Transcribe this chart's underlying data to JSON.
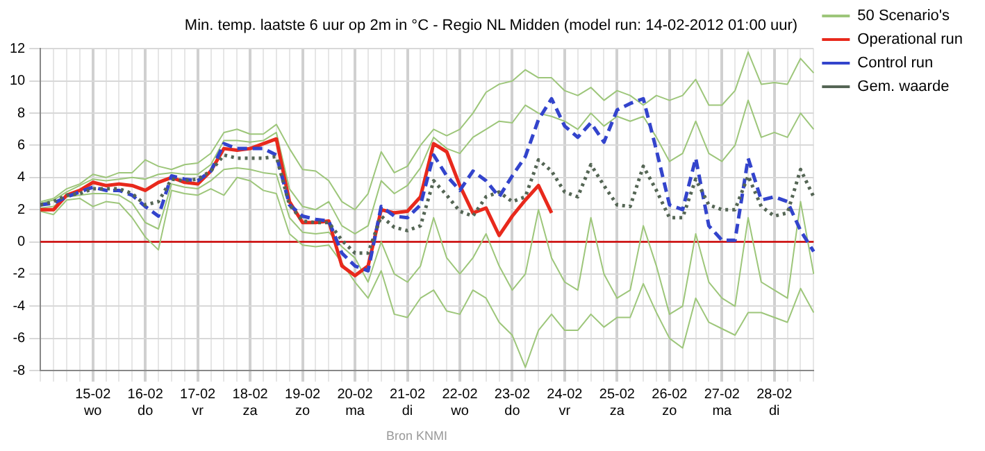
{
  "chart_data": {
    "type": "line",
    "title": "Min. temp. laatste 6 uur op 2m in °C - Regio NL Midden (model run: 14-02-2012 01:00 uur)",
    "categories": [
      null,
      null,
      null,
      null,
      "15-02\nwo",
      null,
      null,
      null,
      "16-02\ndo",
      null,
      null,
      null,
      "17-02\nvr",
      null,
      null,
      null,
      "18-02\nza",
      null,
      null,
      null,
      "19-02\nzo",
      null,
      null,
      null,
      "20-02\nma",
      null,
      null,
      null,
      "21-02\ndi",
      null,
      null,
      null,
      "22-02\nwo",
      null,
      null,
      null,
      "23-02\ndo",
      null,
      null,
      null,
      "24-02\nvr",
      null,
      null,
      null,
      "25-02\nza",
      null,
      null,
      null,
      "26-02\nzo",
      null,
      null,
      null,
      "27-02\nma",
      null,
      null,
      null,
      "28-02\ndi",
      null,
      null,
      null
    ],
    "series": [
      {
        "name": "50 Scenario's",
        "color": "#9dc67a",
        "line_style": "solid",
        "values": [
          2.5,
          2.7,
          3.3,
          3.6,
          4.2,
          4.0,
          4.3,
          4.3,
          5.1,
          4.7,
          4.5,
          4.8,
          4.9,
          5.5,
          6.8,
          7.0,
          6.7,
          6.7,
          7.3,
          5.8,
          4.5,
          4.4,
          3.8,
          2.5,
          2.0,
          3.0,
          5.6,
          4.3,
          4.7,
          6.0,
          7.0,
          6.6,
          7.0,
          8.0,
          9.3,
          9.8,
          10.0,
          10.7,
          10.2,
          10.2,
          9.4,
          9.1,
          9.6,
          8.8,
          9.4,
          9.1,
          8.5,
          9.1,
          8.8,
          9.1,
          10.1,
          8.5,
          8.5,
          9.4,
          11.8,
          9.8,
          9.9,
          9.8,
          11.4,
          10.5
        ]
      },
      {
        "color": "#9dc67a",
        "line_style": "solid",
        "values": [
          1.9,
          1.7,
          2.6,
          2.7,
          2.2,
          2.5,
          2.4,
          1.5,
          0.3,
          -0.5,
          3.2,
          3.0,
          2.9,
          3.3,
          2.9,
          4.0,
          3.8,
          3.2,
          3.0,
          0.5,
          -0.2,
          -0.3,
          -0.2,
          -1.3,
          -2.5,
          -3.5,
          -1.8,
          -4.5,
          -4.7,
          -3.5,
          -3.0,
          -4.3,
          -4.5,
          -3.0,
          -3.5,
          -5.0,
          -5.8,
          -7.8,
          -5.5,
          -4.5,
          -5.5,
          -5.5,
          -4.5,
          -5.3,
          -4.7,
          -4.7,
          -2.6,
          -4.4,
          -6.0,
          -6.6,
          -3.5,
          -5.0,
          -5.4,
          -5.8,
          -4.4,
          -4.4,
          -4.7,
          -5.0,
          -2.9,
          -4.4
        ]
      },
      {
        "color": "#9dc67a",
        "line_style": "solid",
        "values": [
          2.4,
          2.6,
          3.1,
          3.5,
          3.9,
          3.8,
          3.9,
          4.0,
          3.9,
          4.2,
          4.3,
          4.2,
          4.2,
          4.8,
          6.3,
          6.3,
          6.2,
          6.3,
          6.8,
          3.3,
          2.2,
          2.0,
          2.5,
          1.0,
          0.5,
          1.0,
          3.8,
          3.0,
          3.5,
          4.6,
          6.5,
          5.8,
          5.5,
          6.5,
          7.0,
          7.5,
          7.4,
          8.5,
          8.0,
          7.8,
          7.5,
          7.0,
          8.0,
          7.2,
          7.8,
          7.5,
          7.8,
          6.5,
          5.0,
          5.5,
          7.5,
          5.5,
          5.0,
          6.0,
          8.8,
          6.5,
          6.8,
          6.5,
          8.0,
          7.0
        ]
      },
      {
        "color": "#9dc67a",
        "line_style": "solid",
        "values": [
          2.1,
          2.2,
          2.8,
          2.9,
          3.0,
          3.0,
          2.9,
          2.4,
          1.2,
          0.8,
          3.6,
          3.4,
          3.3,
          3.8,
          4.5,
          4.6,
          4.5,
          4.3,
          4.2,
          1.5,
          0.6,
          0.5,
          0.6,
          -0.3,
          -1.0,
          -2.5,
          0.0,
          -2.0,
          -2.5,
          -1.5,
          1.5,
          -1.0,
          -2.0,
          -1.0,
          0.5,
          -1.5,
          -3.0,
          -2.0,
          2.0,
          -1.0,
          -2.5,
          -3.0,
          1.5,
          -2.0,
          -3.5,
          -3.0,
          1.0,
          -1.5,
          -4.5,
          -4.0,
          0.5,
          -2.5,
          -3.5,
          -4.0,
          1.5,
          -2.5,
          -3.0,
          -3.5,
          2.5,
          -2.0
        ]
      },
      {
        "name": "Operational run",
        "color": "#e8291c",
        "line_style": "solid",
        "values": [
          2.0,
          2.0,
          2.9,
          3.2,
          3.7,
          3.5,
          3.6,
          3.5,
          3.2,
          3.7,
          4.0,
          3.7,
          3.6,
          4.4,
          5.8,
          5.7,
          5.8,
          6.1,
          6.4,
          2.5,
          1.2,
          1.2,
          1.3,
          -1.5,
          -2.1,
          -1.5,
          2.0,
          1.8,
          1.9,
          2.8,
          6.1,
          5.6,
          3.5,
          1.8,
          2.1,
          0.4,
          1.6,
          2.6,
          3.5,
          1.8,
          null,
          null,
          null,
          null,
          null,
          null,
          null,
          null,
          null,
          null,
          null,
          null,
          null,
          null,
          null,
          null,
          null,
          null,
          null,
          null
        ]
      },
      {
        "name": "Control run",
        "color": "#3344cc",
        "line_style": "dashed",
        "values": [
          2.3,
          2.4,
          2.8,
          3.1,
          3.4,
          3.2,
          3.2,
          2.9,
          2.2,
          1.6,
          4.1,
          3.9,
          3.8,
          4.4,
          6.1,
          5.8,
          5.8,
          5.8,
          5.4,
          2.3,
          1.6,
          1.4,
          1.3,
          -0.7,
          -1.5,
          -1.8,
          2.2,
          1.6,
          1.5,
          2.3,
          5.4,
          4.1,
          3.2,
          4.4,
          3.8,
          2.8,
          4.1,
          5.3,
          7.6,
          8.9,
          7.2,
          6.5,
          7.4,
          6.2,
          8.2,
          8.6,
          8.9,
          5.7,
          2.3,
          2.0,
          5.2,
          1.0,
          0.1,
          0.1,
          5.2,
          2.6,
          2.8,
          2.5,
          0.7,
          -0.6
        ]
      },
      {
        "name": "Gem. waarde",
        "color": "#556655",
        "line_style": "dotted",
        "values": [
          2.3,
          2.5,
          2.9,
          3.0,
          3.3,
          3.3,
          3.3,
          3.0,
          2.3,
          2.5,
          3.9,
          3.8,
          3.9,
          4.4,
          5.4,
          5.2,
          5.2,
          5.2,
          5.3,
          2.3,
          1.3,
          1.2,
          1.2,
          0.1,
          -0.7,
          -0.7,
          1.6,
          0.9,
          0.7,
          1.0,
          3.8,
          2.9,
          1.9,
          1.6,
          2.8,
          3.1,
          2.5,
          2.8,
          5.1,
          4.4,
          3.1,
          2.8,
          4.8,
          3.5,
          2.3,
          2.2,
          4.7,
          3.2,
          1.5,
          1.5,
          3.9,
          2.3,
          2.0,
          2.0,
          4.1,
          2.2,
          1.6,
          1.8,
          4.5,
          2.8
        ]
      }
    ],
    "ylim": [
      -8,
      12
    ],
    "yticks": [
      -8,
      -6,
      -4,
      -2,
      0,
      2,
      4,
      6,
      8,
      10,
      12
    ],
    "grid": true,
    "legend": "top right",
    "marker": "none",
    "ref_lines": [
      {
        "axis": "y",
        "value": 0,
        "color": "#cc0000"
      }
    ],
    "annotations": [
      "Bron KNMI"
    ]
  }
}
